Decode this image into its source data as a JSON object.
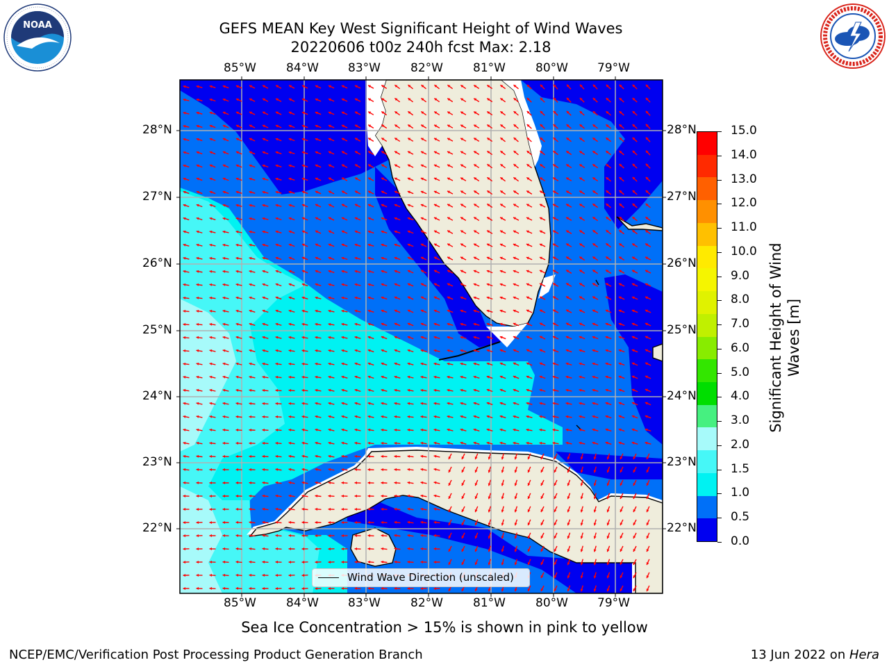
{
  "title": {
    "line1": "GEFS MEAN Key West Significant Height of Wind Waves",
    "line2": "20220606 t00z 240h fcst   Max: 2.18"
  },
  "logos": {
    "noaa": {
      "text": "NOAA",
      "ring_text": "NATIONAL OCEANIC AND ATMOSPHERIC ADMINISTRATION · U.S. DEPARTMENT OF COMMERCE",
      "colors": [
        "#1f3a78",
        "#1a8fd6",
        "#ffffff"
      ]
    },
    "nws": {
      "ring_text": "NATIONAL WEATHER SERVICE",
      "colors": [
        "#d9241b",
        "#1a55b5",
        "#ffffff"
      ]
    }
  },
  "map": {
    "lon_labels": [
      "85°W",
      "84°W",
      "83°W",
      "82°W",
      "81°W",
      "80°W",
      "79°W"
    ],
    "lat_labels": [
      "28°N",
      "27°N",
      "26°N",
      "25°N",
      "24°N",
      "23°N",
      "22°N"
    ],
    "land_color": "#efeddc",
    "ocean_colors": {
      "0.0-0.5": "#0000f0",
      "0.5-1.0": "#0070f8",
      "1.0-1.5": "#00f2f2",
      "1.5-2.0": "#46f7f7",
      "2.0-3.0": "#a7fafa"
    },
    "arrow_color": "#ff0000",
    "grid_color": "#b0b0b0"
  },
  "legend": {
    "label": "Wind Wave Direction (unscaled)"
  },
  "colorbar": {
    "label_line1": "Significant Height of Wind",
    "label_line2": "Waves [m]",
    "ticks": [
      "15.0",
      "14.0",
      "13.0",
      "12.0",
      "11.0",
      "10.0",
      "9.0",
      "8.0",
      "7.0",
      "6.0",
      "5.0",
      "4.0",
      "3.0",
      "2.0",
      "1.5",
      "1.0",
      "0.5",
      "0.0"
    ],
    "colors_bottom_to_top": [
      "#0000f0",
      "#0070f8",
      "#00f2f2",
      "#46f7f7",
      "#a7fafa",
      "#46f080",
      "#00de00",
      "#33e600",
      "#88ec00",
      "#c0f000",
      "#e0f200",
      "#f5f500",
      "#ffea00",
      "#ffc000",
      "#ff9000",
      "#ff6000",
      "#ff2a00",
      "#ff0000"
    ]
  },
  "note": "Sea Ice Concentration > 15% is shown in pink to yellow",
  "footer": {
    "left": "NCEP/EMC/Verification Post Processing Product Generation Branch",
    "right_date": "13 Jun 2022 on ",
    "right_machine": "Hera"
  }
}
